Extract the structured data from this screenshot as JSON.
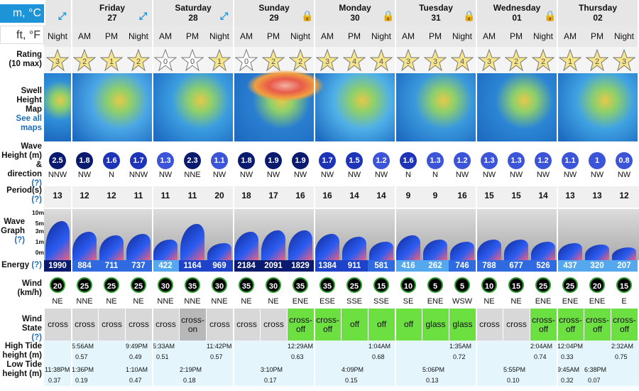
{
  "units": {
    "metric": "m, °C",
    "imperial": "ft, °F"
  },
  "labels": {
    "rating": "Rating",
    "rating_sub": "(10 max)",
    "swell": "Swell",
    "swell2": "Height Map",
    "see": "See all",
    "maps": "maps",
    "wave": "Wave",
    "wave2": "Height (m)",
    "wave3": "& direction",
    "q": "(?)",
    "period": "Period(s)",
    "wgraph": "Wave",
    "wgraph2": "Graph",
    "energy": "Energy",
    "wind": "Wind",
    "wind2": "(km/h)",
    "wstate": "Wind State",
    "high": "High Tide",
    "high2": "height (m)",
    "low": "Low Tide",
    "low2": "height (m)",
    "t10": "10m",
    "t5": "5m",
    "t3": "3m",
    "t1": "1m",
    "t0": "0m"
  },
  "days": [
    {
      "name": "",
      "date": "",
      "icon": "expand-icon"
    },
    {
      "name": "Friday",
      "date": "27",
      "icon": "expand-icon"
    },
    {
      "name": "Saturday",
      "date": "28",
      "icon": "expand-icon"
    },
    {
      "name": "Sunday",
      "date": "29",
      "icon": "lock-icon"
    },
    {
      "name": "Monday",
      "date": "30",
      "icon": "lock-icon"
    },
    {
      "name": "Tuesday",
      "date": "31",
      "icon": "lock-icon"
    },
    {
      "name": "Wednesday",
      "date": "01",
      "icon": "lock-icon"
    },
    {
      "name": "Thursday",
      "date": "02",
      "icon": ""
    }
  ],
  "periods": [
    "Night",
    "AM",
    "PM",
    "Night",
    "AM",
    "PM",
    "Night",
    "AM",
    "PM",
    "Night",
    "AM",
    "PM",
    "Night",
    "AM",
    "PM",
    "Night",
    "AM",
    "PM",
    "Night",
    "AM",
    "PM",
    "Night"
  ],
  "ratings": [
    "3",
    "2",
    "1",
    "2",
    "0",
    "0",
    "1",
    "0",
    "2",
    "2",
    "3",
    "4",
    "4",
    "3",
    "3",
    "4",
    "3",
    "2",
    "2",
    "1",
    "2",
    "3"
  ],
  "wave_heights": [
    "2.5",
    "1.8",
    "1.6",
    "1.7",
    "1.3",
    "2.3",
    "1.1",
    "1.8",
    "1.9",
    "1.9",
    "1.7",
    "1.5",
    "1.2",
    "1.6",
    "1.3",
    "1.2",
    "1.3",
    "1.3",
    "1.2",
    "1.1",
    "1",
    "0.8"
  ],
  "wave_dirs": [
    "NNW",
    "NW",
    "N",
    "NNW",
    "NW",
    "NNE",
    "NW",
    "NW",
    "NW",
    "NW",
    "NW",
    "NW",
    "NW",
    "N",
    "N",
    "NW",
    "NW",
    "NW",
    "NW",
    "NW",
    "NW",
    "NW"
  ],
  "swell_periods": [
    "13",
    "12",
    "12",
    "11",
    "11",
    "11",
    "20",
    "18",
    "17",
    "16",
    "16",
    "14",
    "14",
    "9",
    "9",
    "16",
    "15",
    "15",
    "14",
    "13",
    "13",
    "12"
  ],
  "energy": [
    "1990",
    "884",
    "711",
    "737",
    "422",
    "1164",
    "969",
    "2184",
    "2091",
    "1829",
    "1384",
    "911",
    "581",
    "416",
    "262",
    "746",
    "788",
    "677",
    "526",
    "437",
    "320",
    "207"
  ],
  "wind": [
    "20",
    "25",
    "25",
    "25",
    "30",
    "35",
    "30",
    "35",
    "30",
    "35",
    "35",
    "25",
    "15",
    "10",
    "5",
    "5",
    "10",
    "15",
    "25",
    "25",
    "20",
    "15"
  ],
  "wind_dirs": [
    "NE",
    "NNE",
    "NE",
    "NE",
    "NNE",
    "NNE",
    "NNE",
    "NE",
    "NE",
    "ENE",
    "ESE",
    "SSE",
    "SSE",
    "SE",
    "ENE",
    "WSW",
    "NE",
    "NE",
    "ENE",
    "ENE",
    "ENE",
    "E"
  ],
  "wind_state": [
    "cross",
    "cross",
    "cross",
    "cross",
    "cross",
    "cross-on",
    "cross",
    "cross",
    "cross",
    "cross-off",
    "cross-off",
    "off",
    "off",
    "off",
    "glass",
    "glass",
    "cross",
    "cross",
    "cross-off",
    "cross-off",
    "cross-off",
    "cross-off"
  ],
  "tides": {
    "high": [
      {
        "col": 1,
        "time": "5:56AM",
        "h": "0.57"
      },
      {
        "col": 3,
        "time": "9:49PM",
        "h": "0.49"
      },
      {
        "col": 4,
        "time": "5:33AM",
        "h": "0.51"
      },
      {
        "col": 6,
        "time": "11:42PM",
        "h": "0.57"
      },
      {
        "col": 9,
        "time": "12:29AM",
        "h": "0.63"
      },
      {
        "col": 12,
        "time": "1:04AM",
        "h": "0.68"
      },
      {
        "col": 15,
        "time": "1:35AM",
        "h": "0.72"
      },
      {
        "col": 18,
        "time": "2:04AM",
        "h": "0.74"
      },
      {
        "col": 19,
        "time": "12:04PM",
        "h": "0.33"
      },
      {
        "col": 21,
        "time": "2:32AM",
        "h": "0.75"
      }
    ],
    "low": [
      {
        "col": 0,
        "time": "11:38PM",
        "h": "0.37"
      },
      {
        "col": 1,
        "time": "1:36PM",
        "h": "0.19"
      },
      {
        "col": 3,
        "time": "1:10AM",
        "h": "0.47"
      },
      {
        "col": 5,
        "time": "2:19PM",
        "h": "0.18"
      },
      {
        "col": 8,
        "time": "3:10PM",
        "h": "0.17"
      },
      {
        "col": 11,
        "time": "4:09PM",
        "h": "0.15"
      },
      {
        "col": 14,
        "time": "5:06PM",
        "h": "0.13"
      },
      {
        "col": 17,
        "time": "5:55PM",
        "h": "0.10"
      },
      {
        "col": 19,
        "time": "9:45AM",
        "h": "0.32"
      },
      {
        "col": 20,
        "time": "6:38PM",
        "h": "0.07"
      }
    ]
  }
}
